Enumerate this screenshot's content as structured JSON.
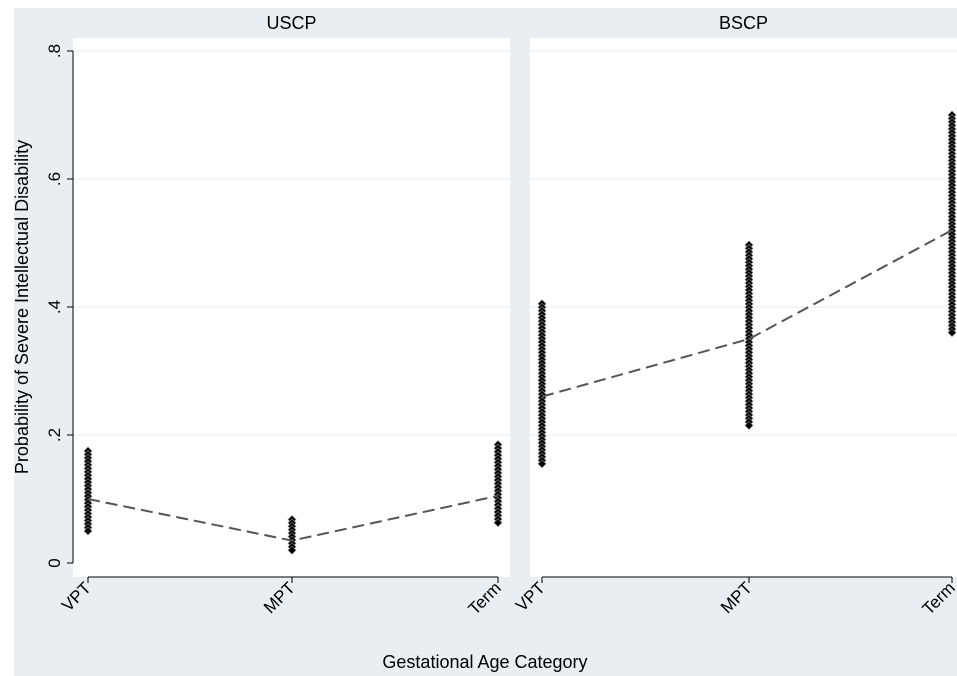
{
  "chart_data": {
    "type": "scatter",
    "xlabel": "Gestational Age Category",
    "ylabel": "Probability of Severe Intellectual Disability",
    "categories": [
      "VPT",
      "MPT",
      "Term"
    ],
    "ylim": [
      0,
      0.8
    ],
    "yticks": [
      0,
      0.2,
      0.4,
      0.6,
      0.8
    ],
    "yticklabels": [
      "0",
      ".2",
      ".4",
      ".6",
      ".8"
    ],
    "grid": true,
    "panels": [
      {
        "title": "USCP",
        "scatter_ranges": [
          {
            "category": "VPT",
            "min": 0.05,
            "max": 0.175
          },
          {
            "category": "MPT",
            "min": 0.02,
            "max": 0.068
          },
          {
            "category": "Term",
            "min": 0.063,
            "max": 0.185
          }
        ],
        "trend_line": {
          "style": "dashed",
          "values": [
            0.1,
            0.035,
            0.105
          ]
        }
      },
      {
        "title": "BSCP",
        "scatter_ranges": [
          {
            "category": "VPT",
            "min": 0.155,
            "max": 0.405
          },
          {
            "category": "MPT",
            "min": 0.215,
            "max": 0.497
          },
          {
            "category": "Term",
            "min": 0.36,
            "max": 0.7
          }
        ],
        "trend_line": {
          "style": "dashed",
          "values": [
            0.26,
            0.35,
            0.52
          ]
        }
      }
    ]
  },
  "colors": {
    "background": "#ffffff",
    "strip": "#e8eef2",
    "gridline": "#eaf0f3",
    "marker": "#000000",
    "marker_highlight": "#8a8a8a",
    "trend": "#555555"
  }
}
